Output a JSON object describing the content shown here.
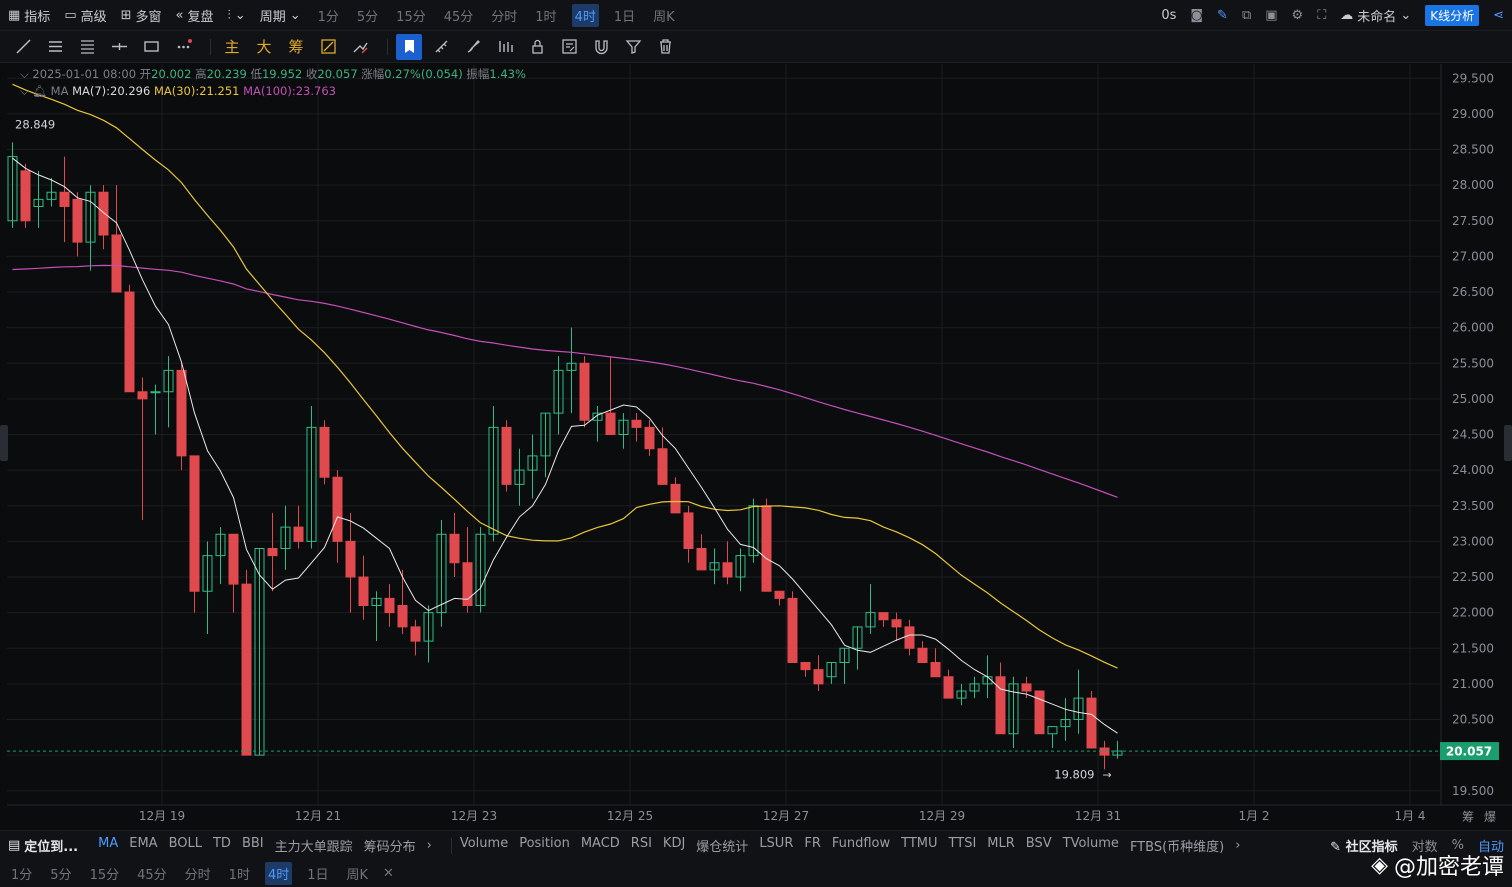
{
  "topbar": {
    "items": [
      {
        "label": "指标",
        "icon": "chart-icon"
      },
      {
        "label": "高级",
        "icon": "layout-icon"
      },
      {
        "label": "多窗",
        "icon": "grid-icon"
      },
      {
        "label": "复盘",
        "icon": "rewind-icon"
      }
    ],
    "chart_type_label": "",
    "period_label": "周期",
    "timeframes": [
      "1分",
      "5分",
      "15分",
      "45分",
      "分时",
      "1时",
      "4时",
      "1日",
      "周K"
    ],
    "active_timeframe": "4时",
    "delay": "0s",
    "layout_name": "未命名",
    "kline_button": "K线分析"
  },
  "toolbar": {
    "main_labels": [
      "主",
      "大",
      "筹"
    ]
  },
  "legend": {
    "date": "2025-01-01 08:00",
    "open_label": "开",
    "open": "20.002",
    "high_label": "高",
    "high": "20.239",
    "low_label": "低",
    "low": "19.952",
    "close_label": "收",
    "close": "20.057",
    "change_label": "涨幅",
    "change": "0.27%(0.054)",
    "amp_label": "振幅",
    "amp": "1.43%",
    "ma_name": "MA",
    "ma7": "MA(7):20.296",
    "ma30": "MA(30):21.251",
    "ma100": "MA(100):23.763"
  },
  "colors": {
    "up": "#2ebd85",
    "down": "#e0494d",
    "ma7": "#e8e8e8",
    "ma30": "#e8c53a",
    "ma100": "#c44fb8",
    "current_price": "#1a9e6e",
    "grid": "#1b1d21"
  },
  "chart_data": {
    "type": "candlestick",
    "title": "",
    "y_ticks": [
      "29.500",
      "29.000",
      "28.500",
      "28.000",
      "27.500",
      "27.000",
      "26.500",
      "26.000",
      "25.500",
      "25.000",
      "24.500",
      "24.000",
      "23.500",
      "23.000",
      "22.500",
      "22.000",
      "21.500",
      "21.000",
      "20.500",
      "20.000",
      "19.500"
    ],
    "ylim": [
      19.3,
      29.7
    ],
    "x_ticks": [
      "12月 19",
      "12月 21",
      "12月 23",
      "12月 25",
      "12月 27",
      "12月 29",
      "12月 31",
      "1月 2",
      "1月 4"
    ],
    "x_tick_index": [
      11.5,
      23.5,
      35.5,
      47.5,
      59.5,
      71.5,
      83.5,
      95.5,
      107.5
    ],
    "x_total": 115,
    "current_price": "20.057",
    "high_marker": "28.849",
    "low_marker": "19.809",
    "candles_ohlc": [
      [
        27.5,
        28.6,
        27.4,
        28.4
      ],
      [
        28.2,
        28.3,
        27.4,
        27.5
      ],
      [
        27.7,
        28.2,
        27.4,
        27.8
      ],
      [
        27.8,
        28.1,
        27.7,
        27.9
      ],
      [
        27.9,
        28.4,
        27.2,
        27.7
      ],
      [
        27.8,
        27.9,
        27.0,
        27.2
      ],
      [
        27.2,
        28.0,
        26.8,
        27.9
      ],
      [
        27.9,
        28.0,
        27.1,
        27.3
      ],
      [
        27.3,
        28.0,
        26.5,
        26.5
      ],
      [
        26.5,
        26.6,
        25.1,
        25.1
      ],
      [
        25.1,
        25.3,
        23.3,
        25.0
      ],
      [
        25.1,
        25.2,
        24.5,
        25.1
      ],
      [
        25.1,
        25.6,
        24.6,
        25.4
      ],
      [
        25.4,
        25.5,
        24.0,
        24.2
      ],
      [
        24.2,
        24.2,
        22.0,
        22.3
      ],
      [
        22.3,
        23.0,
        21.7,
        22.8
      ],
      [
        22.8,
        23.2,
        22.4,
        23.1
      ],
      [
        23.1,
        23.1,
        22.0,
        22.4
      ],
      [
        22.4,
        22.6,
        20.0,
        20.0
      ],
      [
        20.0,
        22.9,
        20.0,
        22.9
      ],
      [
        22.9,
        23.4,
        22.3,
        22.8
      ],
      [
        22.9,
        23.5,
        22.6,
        23.2
      ],
      [
        23.2,
        23.5,
        22.9,
        23.0
      ],
      [
        23.0,
        24.9,
        22.9,
        24.6
      ],
      [
        24.6,
        24.7,
        23.8,
        23.9
      ],
      [
        23.9,
        24.0,
        22.7,
        23.0
      ],
      [
        23.0,
        23.4,
        22.0,
        22.5
      ],
      [
        22.5,
        22.8,
        21.9,
        22.1
      ],
      [
        22.1,
        22.3,
        21.6,
        22.2
      ],
      [
        22.2,
        22.4,
        21.8,
        22.0
      ],
      [
        22.1,
        22.6,
        21.7,
        21.8
      ],
      [
        21.8,
        21.9,
        21.4,
        21.6
      ],
      [
        21.6,
        22.1,
        21.3,
        22.0
      ],
      [
        22.0,
        23.3,
        21.8,
        23.1
      ],
      [
        23.1,
        23.4,
        22.5,
        22.7
      ],
      [
        22.7,
        23.2,
        22.0,
        22.1
      ],
      [
        22.1,
        23.2,
        22.0,
        23.1
      ],
      [
        23.1,
        24.9,
        23.0,
        24.6
      ],
      [
        24.6,
        24.7,
        23.7,
        23.8
      ],
      [
        23.8,
        24.3,
        23.5,
        24.0
      ],
      [
        24.0,
        24.5,
        23.6,
        24.2
      ],
      [
        24.2,
        24.8,
        23.9,
        24.8
      ],
      [
        24.8,
        25.6,
        24.5,
        25.4
      ],
      [
        25.4,
        26.0,
        24.8,
        25.5
      ],
      [
        25.5,
        25.6,
        24.6,
        24.7
      ],
      [
        24.7,
        24.9,
        24.4,
        24.8
      ],
      [
        24.8,
        25.6,
        24.5,
        24.5
      ],
      [
        24.5,
        24.8,
        24.3,
        24.7
      ],
      [
        24.7,
        24.8,
        24.4,
        24.6
      ],
      [
        24.6,
        24.7,
        24.2,
        24.3
      ],
      [
        24.3,
        24.6,
        23.8,
        23.8
      ],
      [
        23.8,
        23.9,
        23.4,
        23.4
      ],
      [
        23.4,
        23.5,
        22.7,
        22.9
      ],
      [
        22.9,
        23.1,
        22.6,
        22.6
      ],
      [
        22.6,
        22.9,
        22.4,
        22.7
      ],
      [
        22.7,
        23.0,
        22.4,
        22.5
      ],
      [
        22.5,
        22.9,
        22.3,
        22.8
      ],
      [
        22.8,
        23.6,
        22.7,
        23.5
      ],
      [
        23.5,
        23.6,
        22.3,
        22.3
      ],
      [
        22.3,
        22.3,
        22.1,
        22.2
      ],
      [
        22.2,
        22.3,
        21.9,
        21.3
      ],
      [
        21.3,
        21.3,
        21.1,
        21.2
      ],
      [
        21.2,
        21.4,
        20.9,
        21.0
      ],
      [
        21.1,
        21.3,
        21.0,
        21.3
      ],
      [
        21.3,
        21.5,
        21.0,
        21.5
      ],
      [
        21.5,
        21.8,
        21.2,
        21.8
      ],
      [
        21.8,
        22.4,
        21.7,
        22.0
      ],
      [
        22.0,
        22.0,
        21.8,
        21.9
      ],
      [
        21.9,
        22.0,
        21.6,
        21.8
      ],
      [
        21.8,
        21.9,
        21.4,
        21.5
      ],
      [
        21.5,
        21.6,
        21.3,
        21.3
      ],
      [
        21.3,
        21.5,
        21.1,
        21.1
      ],
      [
        21.1,
        21.2,
        20.9,
        20.8
      ],
      [
        20.8,
        21.0,
        20.7,
        20.9
      ],
      [
        20.9,
        21.1,
        20.8,
        21.0
      ],
      [
        21.0,
        21.4,
        20.8,
        21.1
      ],
      [
        21.1,
        21.3,
        20.5,
        20.3
      ],
      [
        20.3,
        21.1,
        20.1,
        21.0
      ],
      [
        21.0,
        21.1,
        20.8,
        20.9
      ],
      [
        20.9,
        20.9,
        20.3,
        20.3
      ],
      [
        20.3,
        20.3,
        20.1,
        20.4
      ],
      [
        20.4,
        20.8,
        20.2,
        20.5
      ],
      [
        20.5,
        21.2,
        20.3,
        20.8
      ],
      [
        20.8,
        20.9,
        20.1,
        20.1
      ],
      [
        20.1,
        20.2,
        19.8,
        20.0
      ],
      [
        20.0,
        20.2,
        19.95,
        20.057
      ]
    ]
  },
  "indicators": {
    "main": [
      "MA",
      "EMA",
      "BOLL",
      "TD",
      "BBI",
      "主力大单跟踪",
      "筹码分布"
    ],
    "sub": [
      "Volume",
      "Position",
      "MACD",
      "RSI",
      "KDJ",
      "爆仓统计",
      "LSUR",
      "FR",
      "Fundflow",
      "TTMU",
      "TTSI",
      "MLR",
      "BSV",
      "TVolume",
      "FTBS(币种维度)"
    ],
    "locate": "定位到...",
    "community": "社区指标",
    "log_label": "对数",
    "pct_label": "%",
    "auto_label": "自动"
  },
  "bottombar": {
    "timeframes": [
      "1分",
      "5分",
      "15分",
      "45分",
      "分时",
      "1时",
      "4时",
      "1日",
      "周K"
    ],
    "active": "4时",
    "watermark": "@加密老谭"
  },
  "axis_side": {
    "chou": "筹",
    "bao": "爆"
  }
}
